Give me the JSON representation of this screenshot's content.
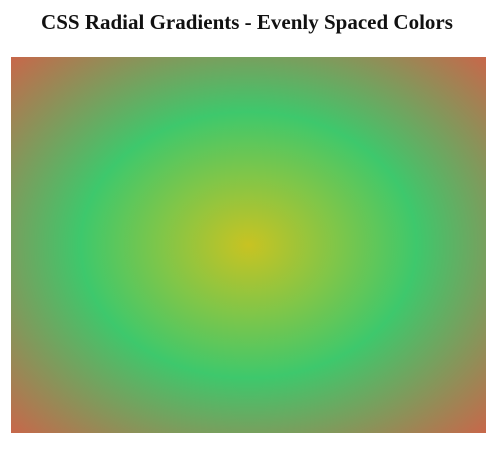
{
  "page": {
    "title": "CSS Radial Gradients - Evenly Spaced Colors"
  },
  "gradient": {
    "shape": "ellipse",
    "position": "center",
    "colors": [
      "#c8c322",
      "#3ec86c",
      "#c8674a"
    ]
  }
}
